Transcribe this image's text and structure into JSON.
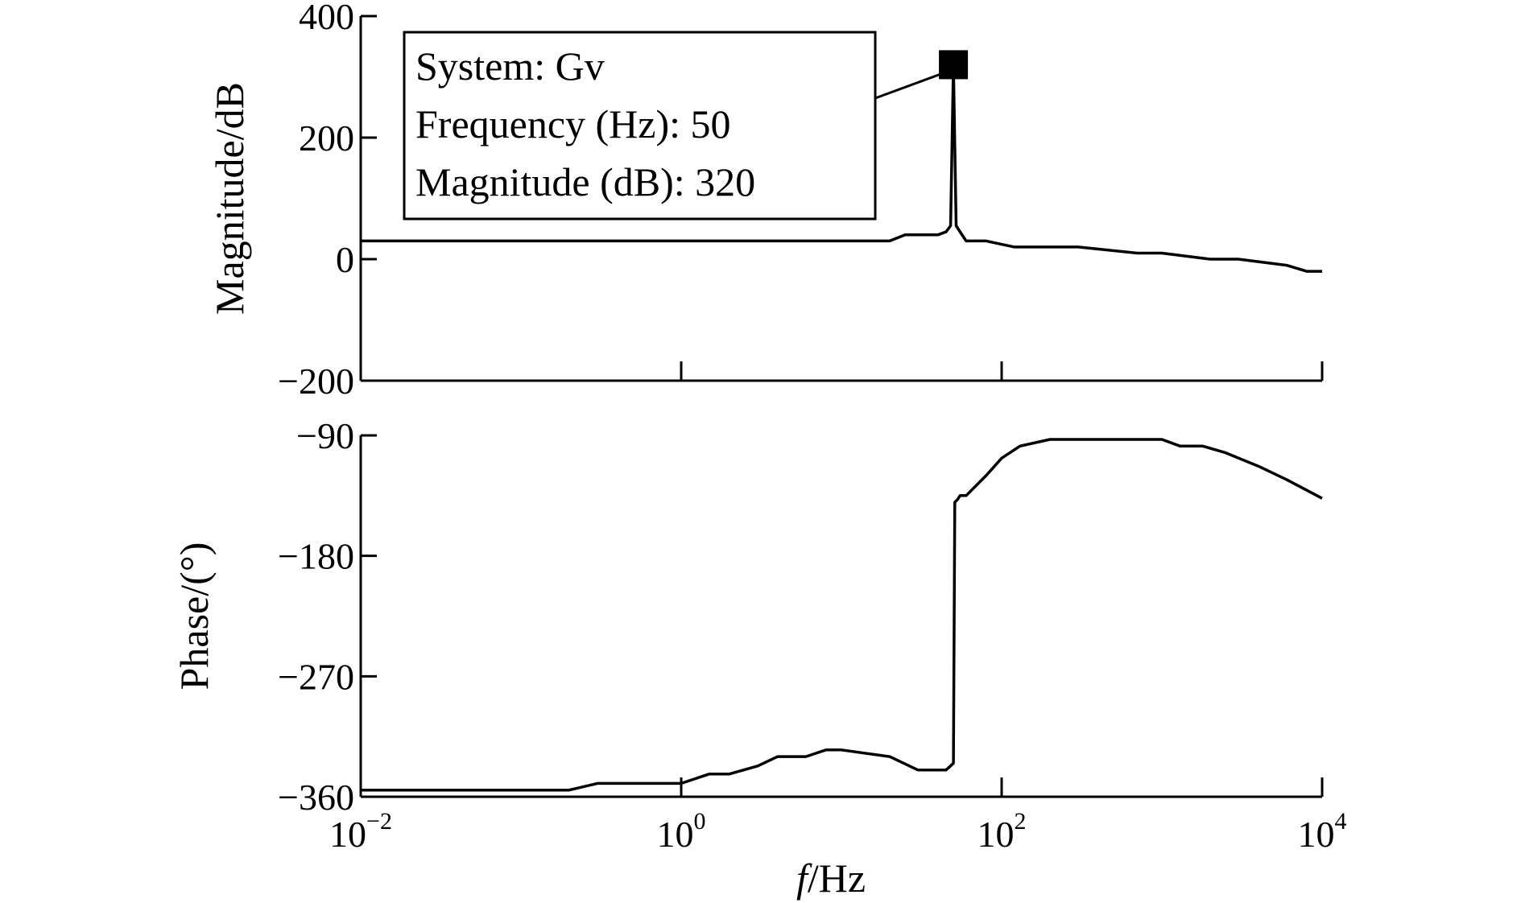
{
  "chart_data": {
    "type": "line",
    "x_scale": "log",
    "xlim": [
      0.01,
      10000
    ],
    "x_ticks": [
      0.01,
      1,
      100,
      10000
    ],
    "x_tick_labels": [
      {
        "base": "10",
        "exp": "−2"
      },
      {
        "base": "10",
        "exp": "0"
      },
      {
        "base": "10",
        "exp": "2"
      },
      {
        "base": "10",
        "exp": "4"
      }
    ],
    "xlabel": {
      "italic": "f",
      "rest": "/Hz"
    },
    "grid": false,
    "panels": [
      {
        "id": "magnitude",
        "ylabel": "Magnitude/dB",
        "ylim": [
          -200,
          400
        ],
        "y_ticks": [
          -200,
          0,
          200,
          400
        ],
        "y_tick_labels": [
          "−200",
          "0",
          "200",
          "400"
        ],
        "x": [
          0.01,
          20,
          25,
          40,
          45,
          48,
          50,
          52,
          55,
          60,
          80,
          120,
          300,
          700,
          1000,
          2000,
          3000,
          6000,
          8000,
          10000
        ],
        "y": [
          30,
          30,
          40,
          40,
          45,
          55,
          320,
          55,
          45,
          30,
          30,
          20,
          20,
          10,
          10,
          0,
          0,
          -10,
          -20,
          -20
        ]
      },
      {
        "id": "phase",
        "ylabel": "Phase/(°)",
        "ylim": [
          -360,
          -90
        ],
        "y_ticks": [
          -360,
          -270,
          -180,
          -90
        ],
        "y_tick_labels": [
          "−360",
          "−270",
          "−180",
          "−90"
        ],
        "x": [
          0.01,
          0.2,
          0.3,
          0.6,
          1,
          1.5,
          2,
          3,
          4,
          6,
          8,
          10,
          20,
          30,
          40,
          45,
          50,
          51,
          53,
          55,
          60,
          80,
          100,
          130,
          200,
          1000,
          1300,
          1800,
          2500,
          4000,
          6000,
          10000
        ],
        "y": [
          -355,
          -355,
          -350,
          -350,
          -350,
          -343,
          -343,
          -337,
          -330,
          -330,
          -325,
          -325,
          -330,
          -340,
          -340,
          -340,
          -335,
          -140,
          -138,
          -135,
          -135,
          -120,
          -107,
          -98,
          -93,
          -93,
          -98,
          -98,
          -103,
          -113,
          -123,
          -137
        ]
      }
    ],
    "annotation": {
      "panel": "magnitude",
      "x": 50,
      "y": 320,
      "lines": [
        "System: Gv",
        "Frequency (Hz): 50",
        "Magnitude (dB): 320"
      ]
    }
  }
}
